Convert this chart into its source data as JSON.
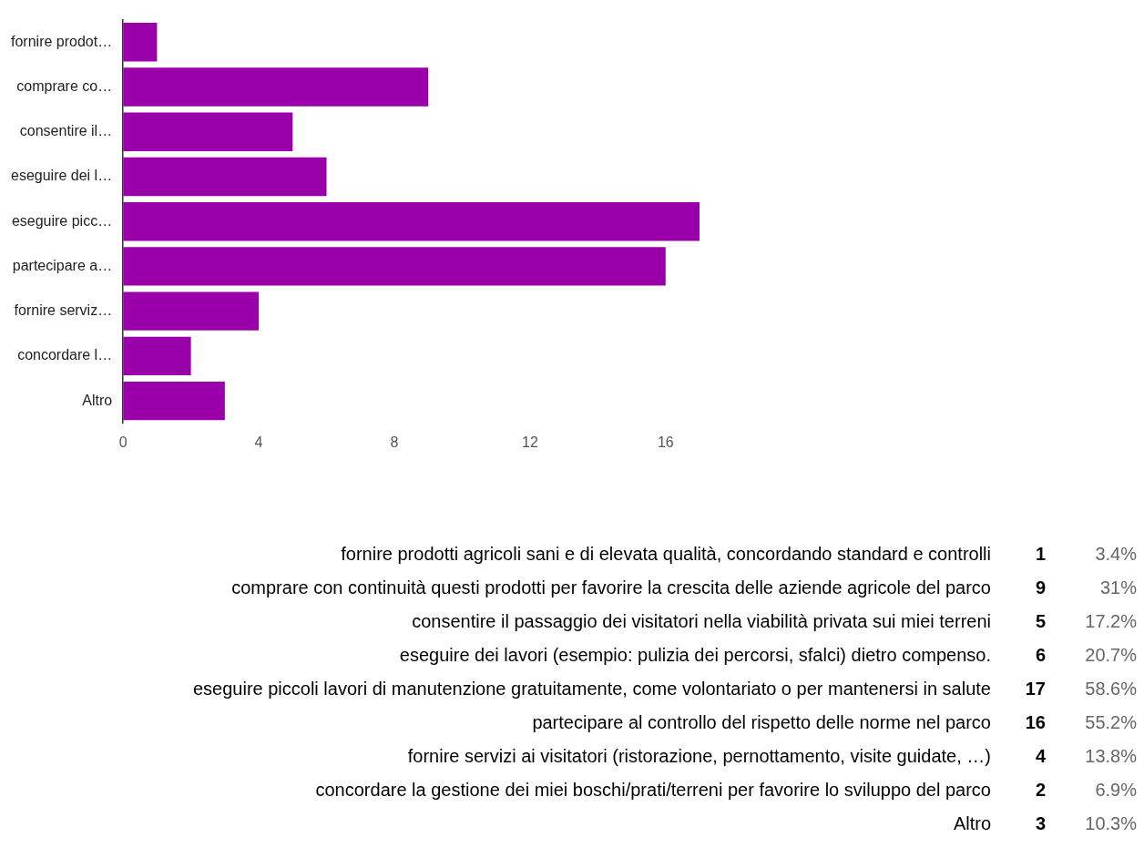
{
  "chart_data": {
    "type": "bar",
    "orientation": "horizontal",
    "categories": [
      "fornire prodot…",
      "comprare co…",
      "consentire il…",
      "eseguire dei l…",
      "eseguire picc…",
      "partecipare a…",
      "fornire serviz…",
      "concordare l…",
      "Altro"
    ],
    "values": [
      1,
      9,
      5,
      6,
      17,
      16,
      4,
      2,
      3
    ],
    "color": "#9900aa",
    "xlim": [
      0,
      17
    ],
    "xticks": [
      0,
      4,
      8,
      12,
      16
    ],
    "grid": false,
    "legend": false,
    "annotations": [
      "fornire prodotti agricoli sani e di elevata qualità, concordando standard e controlli",
      "1",
      "3.4%",
      "comprare con continuità questi prodotti per favorire la crescita delle aziende agricole del parco",
      "9",
      "31%",
      "consentire il passaggio dei visitatori nella viabilità privata sui miei terreni",
      "5",
      "17.2%",
      "eseguire dei lavori (esempio: pulizia dei percorsi, sfalci) dietro compenso.",
      "6",
      "20.7%",
      "eseguire piccoli lavori di manutenzione gratuitamente, come volontariato o per mantenersi in salute",
      "17",
      "58.6%",
      "partecipare al controllo del rispetto delle norme nel parco",
      "16",
      "55.2%",
      "fornire servizi ai visitatori (ristorazione, pernottamento, visite guidate, …)",
      "4",
      "13.8%",
      "concordare la gestione dei miei boschi/prati/terreni per favorire lo sviluppo del parco",
      "2",
      "6.9%",
      "Altro",
      "3",
      "10.3%"
    ]
  }
}
